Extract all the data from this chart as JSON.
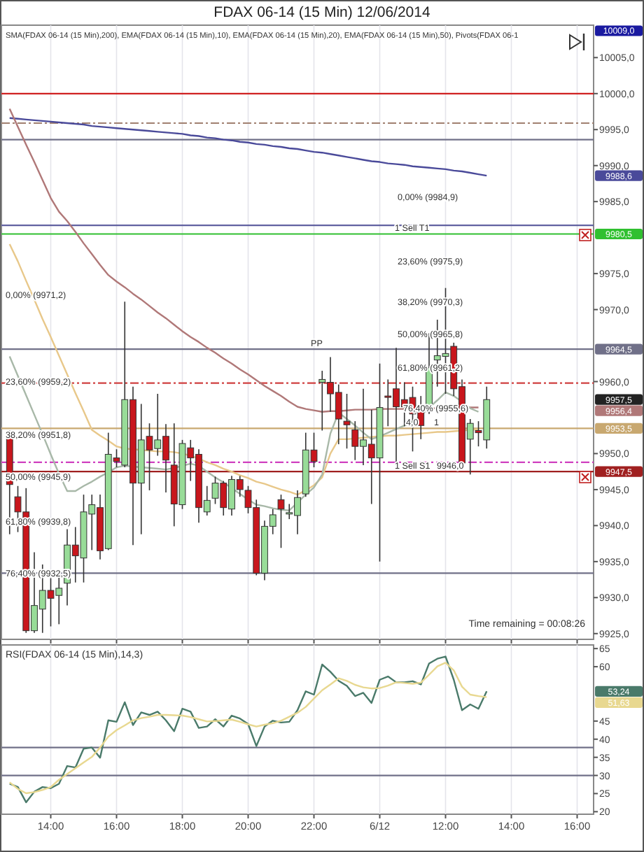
{
  "chart_data": [
    {
      "type": "candlestick",
      "title": "FDAX 06-14 (15 Min)  12/06/2014",
      "categories": [
        null,
        null,
        null,
        null,
        null,
        null,
        null,
        null,
        null,
        null,
        null,
        null,
        null,
        null,
        null,
        null,
        null,
        null,
        null,
        null,
        null,
        null,
        null,
        null,
        null,
        null,
        null,
        null,
        null,
        null,
        null,
        null,
        null,
        null,
        null,
        null,
        null,
        null,
        null,
        null,
        null,
        null,
        null,
        null,
        null,
        null,
        null,
        null,
        null,
        null,
        null,
        null,
        null,
        null,
        null,
        null,
        null,
        null,
        null,
        null,
        null,
        null,
        null,
        null,
        null,
        null,
        null,
        null,
        null,
        null,
        null
      ],
      "ohlc": [
        [
          9952.4,
          9953.2,
          9938.8,
          9945.7
        ],
        [
          9944.0,
          9945.5,
          9939.1,
          9941.9
        ],
        [
          9941.9,
          9945.2,
          9925.1,
          9925.4
        ],
        [
          9925.4,
          9936.3,
          9925.1,
          9928.9
        ],
        [
          9928.4,
          9934.6,
          9925.1,
          9931.0
        ],
        [
          9931.0,
          9932.7,
          9926.0,
          9929.9
        ],
        [
          9930.3,
          9933.4,
          9926.3,
          9931.3
        ],
        [
          9932.0,
          9939.5,
          9928.9,
          9937.3
        ],
        [
          9937.3,
          9939.8,
          9932.1,
          9935.8
        ],
        [
          9935.5,
          9944.3,
          9932.1,
          9941.9
        ],
        [
          9941.6,
          9944.3,
          9936.6,
          9942.9
        ],
        [
          9942.5,
          9944.3,
          9935.3,
          9936.5
        ],
        [
          9936.8,
          9952.9,
          9936.6,
          9949.9
        ],
        [
          9949.4,
          9950.6,
          9948.1,
          9948.9
        ],
        [
          9948.4,
          9971.1,
          9948.1,
          9957.5
        ],
        [
          9957.5,
          9959.3,
          9937.3,
          9945.9
        ],
        [
          9945.9,
          9956.9,
          9938.8,
          9951.9
        ],
        [
          9952.4,
          9954.2,
          9944.9,
          9950.5
        ],
        [
          9950.7,
          9958.3,
          9949.7,
          9951.9
        ],
        [
          9952.4,
          9954.1,
          9944.6,
          9949.1
        ],
        [
          9948.4,
          9954.2,
          9939.9,
          9943.0
        ],
        [
          9942.9,
          9951.9,
          9942.3,
          9951.4
        ],
        [
          9950.8,
          9951.9,
          9946.2,
          9949.4
        ],
        [
          9949.9,
          9950.6,
          9940.4,
          9942.5
        ],
        [
          9941.9,
          9945.5,
          9941.4,
          9943.5
        ],
        [
          9943.8,
          9946.8,
          9943.0,
          9945.9
        ],
        [
          9945.9,
          9946.2,
          9941.4,
          9942.5
        ],
        [
          9942.3,
          9946.9,
          9941.4,
          9946.4
        ],
        [
          9946.4,
          9946.9,
          9944.0,
          9945.0
        ],
        [
          9944.9,
          9945.5,
          9941.7,
          9942.5
        ],
        [
          9942.5,
          9943.6,
          9933.1,
          9933.4
        ],
        [
          9933.4,
          9940.7,
          9932.4,
          9939.9
        ],
        [
          9939.9,
          9942.3,
          9938.8,
          9941.5
        ],
        [
          9943.6,
          9944.3,
          9936.9,
          9942.3
        ],
        [
          9941.7,
          9943.0,
          9940.9,
          9941.8
        ],
        [
          9941.4,
          9944.9,
          9938.8,
          9943.9
        ],
        [
          9944.4,
          9952.9,
          9944.0,
          9950.5
        ],
        [
          9950.5,
          9952.9,
          9948.1,
          9948.9
        ],
        [
          9959.9,
          9961.5,
          9953.2,
          9960.3
        ],
        [
          9959.9,
          9963.4,
          9955.8,
          9958.3
        ],
        [
          9958.5,
          9959.6,
          9951.3,
          9954.8
        ],
        [
          9954.5,
          9958.3,
          9950.7,
          9954.0
        ],
        [
          9953.3,
          9954.5,
          9949.1,
          9951.0
        ],
        [
          9951.0,
          9959.0,
          9948.4,
          9951.9
        ],
        [
          9951.3,
          9956.1,
          9943.0,
          9949.4
        ],
        [
          9949.4,
          9962.5,
          9935.0,
          9956.4
        ],
        [
          9958.0,
          9960.3,
          9953.8,
          9957.9
        ],
        [
          9959.0,
          9964.7,
          9948.4,
          9956.5
        ],
        [
          9957.5,
          9959.9,
          9953.8,
          9956.5
        ],
        [
          9957.8,
          9959.3,
          9950.3,
          9955.5
        ],
        [
          9956.4,
          9958.0,
          9952.0,
          9953.9
        ],
        [
          9955.8,
          9966.7,
          9955.5,
          9961.9
        ],
        [
          9963.0,
          9968.6,
          9959.3,
          9963.6
        ],
        [
          9963.5,
          9973.0,
          9958.3,
          9963.9
        ],
        [
          9964.9,
          9965.4,
          9958.0,
          9959.0
        ],
        [
          9959.3,
          9960.3,
          9948.4,
          9948.7
        ],
        [
          9952.0,
          9954.8,
          9947.1,
          9954.2
        ],
        [
          9953.2,
          9954.5,
          9951.0,
          9952.9
        ],
        [
          9951.9,
          9959.3,
          9950.7,
          9957.5
        ],
        null,
        null,
        null,
        null,
        null,
        null,
        null,
        null,
        null,
        null,
        null,
        null
      ],
      "series": [
        {
          "type": "line",
          "color": "#4a4a9a",
          "values": [
            9996.6,
            9996.5,
            9996.4,
            9996.3,
            9996.2,
            9996.1,
            9996.0,
            9995.9,
            9995.8,
            9995.7,
            9995.5,
            9995.4,
            9995.3,
            9995.2,
            9995.1,
            9995.0,
            9994.9,
            9994.8,
            9994.7,
            9994.6,
            9994.5,
            9994.4,
            9994.2,
            9994.1,
            9993.9,
            9993.8,
            9993.6,
            9993.5,
            9993.3,
            9993.2,
            9993.0,
            9992.9,
            9992.7,
            9992.6,
            9992.4,
            9992.3,
            9992.1,
            9991.9,
            9991.8,
            9991.6,
            9991.4,
            9991.2,
            9991.0,
            9990.8,
            9990.6,
            9990.5,
            9990.3,
            9990.2,
            9990.1,
            9989.9,
            9989.8,
            9989.7,
            9989.6,
            9989.5,
            9989.3,
            9989.2,
            9989.0,
            9988.8,
            9988.6,
            null,
            null,
            null,
            null,
            null,
            null,
            null,
            null,
            null,
            null,
            null,
            null
          ]
        },
        {
          "type": "line",
          "color": "#b07878",
          "values": [
            9997.9,
            9995.4,
            9992.9,
            9990.5,
            9988.0,
            9985.5,
            9983.6,
            9982.3,
            9980.8,
            9979.2,
            9977.7,
            9976.2,
            9974.8,
            9973.9,
            9973.1,
            9972.2,
            9971.4,
            9970.5,
            9969.6,
            9968.8,
            9967.9,
            9967.0,
            9966.2,
            9965.5,
            9964.7,
            9964.0,
            9963.2,
            9962.5,
            9961.7,
            9961.0,
            9960.2,
            9959.4,
            9958.7,
            9958.0,
            9957.2,
            9956.5,
            9956.2,
            9956.0,
            9955.8,
            9955.9,
            9955.9,
            9956.0,
            9956.1,
            9956.1,
            9956.1,
            9956.2,
            9956.2,
            9956.2,
            9956.2,
            9956.2,
            9956.3,
            9956.3,
            9956.3,
            9956.3,
            9956.3,
            9956.4,
            9956.4,
            9956.4,
            null,
            null,
            null,
            null,
            null,
            null,
            null,
            null,
            null,
            null,
            null,
            null,
            null
          ]
        },
        {
          "type": "line",
          "color": "#e8c88a",
          "values": [
            9979.1,
            9976.7,
            9974.0,
            9971.4,
            9968.7,
            9966.2,
            9963.6,
            9961.0,
            9958.4,
            9955.9,
            9953.3,
            9952.5,
            9951.8,
            9951.0,
            9950.7,
            9950.6,
            9950.5,
            9950.4,
            9950.3,
            9950.3,
            9950.2,
            9950.0,
            9949.7,
            9949.3,
            9948.8,
            9948.4,
            9947.9,
            9947.5,
            9947.0,
            9946.6,
            9946.1,
            9945.8,
            9945.4,
            9945.0,
            9944.7,
            9944.3,
            9944.9,
            9945.6,
            9946.7,
            9950.0,
            9952.0,
            9952.0,
            9952.1,
            9952.2,
            9952.3,
            9952.4,
            9952.5,
            9952.5,
            9952.6,
            9952.7,
            9952.8,
            9952.9,
            9953.0,
            9953.0,
            9953.1,
            9953.2,
            9953.3,
            9953.4,
            null,
            null,
            null,
            null,
            null,
            null,
            null,
            null,
            null,
            null,
            null,
            null,
            null
          ]
        },
        {
          "type": "line",
          "color": "#a8b8a8",
          "values": [
            9963.5,
            9960.8,
            9958.1,
            9955.4,
            9952.7,
            9949.9,
            9947.2,
            9944.8,
            9944.8,
            9945.5,
            9946.1,
            9946.8,
            9947.4,
            9948.1,
            9948.3,
            9948.2,
            9948.1,
            9948.0,
            9947.9,
            9947.8,
            9948.0,
            9948.3,
            9948.6,
            9948.3,
            9947.5,
            9946.7,
            9946.0,
            9945.2,
            9944.4,
            9943.6,
            9942.9,
            9942.7,
            9942.4,
            9942.2,
            9942.1,
            9943.2,
            9944.3,
            9945.3,
            9947.1,
            9952.8,
            9955.7,
            9954.8,
            9953.9,
            9952.9,
            9952.0,
            9952.4,
            9952.9,
            9953.4,
            9953.9,
            9954.4,
            9955.3,
            9956.4,
            9957.4,
            9958.5,
            9958.0,
            9957.2,
            9956.3,
            9955.8,
            null,
            null,
            null,
            null,
            null,
            null,
            null,
            null,
            null,
            null,
            null,
            null,
            null
          ]
        }
      ],
      "ylim": [
        9924.2,
        10009.5
      ],
      "yticks": [
        {
          "value": 9925,
          "label": "9925,0"
        },
        {
          "value": 9930,
          "label": "9930,0"
        },
        {
          "value": 9935,
          "label": "9935,0"
        },
        {
          "value": 9940,
          "label": "9940,0"
        },
        {
          "value": 9945,
          "label": "9945,0"
        },
        {
          "value": 9950,
          "label": "9950,0"
        },
        {
          "value": 9960,
          "label": "9960,0"
        },
        {
          "value": 9970,
          "label": "9970,0"
        },
        {
          "value": 9975,
          "label": "9975,0"
        },
        {
          "value": 9985,
          "label": "9985,0"
        },
        {
          "value": 9990,
          "label": "9990,0"
        },
        {
          "value": 9995,
          "label": "9995,0"
        },
        {
          "value": 10000,
          "label": "10000,0"
        },
        {
          "value": 10005,
          "label": "10005,0"
        }
      ],
      "grid": "x",
      "ref_lines": [
        {
          "axis": "y",
          "value": 10000,
          "color": "#d02020",
          "line_style": "solid"
        },
        {
          "axis": "y",
          "value": 9995.9,
          "color": "#a08070",
          "line_style": "dashed"
        },
        {
          "axis": "y",
          "value": 9993.6,
          "color": "#707088",
          "line_style": "solid"
        },
        {
          "axis": "y",
          "value": 9981.7,
          "color": "#6060a0",
          "line_style": "solid"
        },
        {
          "axis": "y",
          "value": 9980.5,
          "color": "#30c030",
          "line_style": "solid",
          "label": "9980,5"
        },
        {
          "axis": "y",
          "value": 9964.5,
          "color": "#707088",
          "line_style": "solid",
          "label": "9964,5"
        },
        {
          "axis": "y",
          "value": 9959.8,
          "color": "#d04040",
          "line_style": "dashed"
        },
        {
          "axis": "y",
          "value": 9953.5,
          "color": "#c8a870",
          "line_style": "solid",
          "label": "9953,5"
        },
        {
          "axis": "y",
          "value": 9948.8,
          "color": "#d040c0",
          "line_style": "dashed"
        },
        {
          "axis": "y",
          "value": 9947.5,
          "color": "#a02020",
          "line_style": "solid",
          "label": "9947,5"
        },
        {
          "axis": "y",
          "value": 9933.4,
          "color": "#707088",
          "line_style": "solid"
        }
      ],
      "annotations": [
        "SMA(FDAX 06-14 (15 Min),200), EMA(FDAX 06-14 (15 Min),10), EMA(FDAX 06-14 (15 Min),20), EMA(FDAX 06-14 (15 Min),50), Pivots(FDAX 06-1",
        "Time remaining = 00:08:26",
        "10009,0",
        "9988,6",
        "9957,5",
        "9956,4",
        "0,00% (9971,2)",
        "23,60% (9959,2)",
        "38,20% (9951,8)",
        "50,00% (9945,9)",
        "61,80% (9939,8)",
        "76,40% (9932,5)",
        "0,00% (9984,9)",
        "23,60% (9975,9)",
        "38,20% (9970,3)",
        "50,00% (9965,8)",
        "61,80% (9961,2)",
        "76,40% (9955,6)",
        {
          "text": "PP",
          "y": 9964.5
        },
        {
          "text": "1 Sell T1",
          "y": 9980.5
        },
        {
          "text": "1 Sell S1",
          "y": 9947.5
        },
        {
          "text": "9946,0",
          "y": 9947.5
        },
        {
          "text": "4,0",
          "y": 9953.5
        },
        {
          "text": "1",
          "y": 9953.5
        }
      ]
    },
    {
      "type": "line",
      "categories": [
        null,
        null,
        null,
        null,
        null,
        "14:00",
        null,
        null,
        null,
        null,
        null,
        null,
        null,
        "16:00",
        null,
        null,
        null,
        null,
        null,
        null,
        null,
        "18:00",
        null,
        null,
        null,
        null,
        null,
        null,
        null,
        "20:00",
        null,
        null,
        null,
        null,
        null,
        null,
        null,
        "22:00",
        null,
        null,
        null,
        null,
        null,
        null,
        null,
        "6/12",
        null,
        null,
        null,
        null,
        null,
        null,
        null,
        "12:00",
        null,
        null,
        null,
        null,
        null,
        null,
        null,
        "14:00",
        null,
        null,
        null,
        null,
        null,
        null,
        null,
        "16:00",
        null
      ],
      "series": [
        {
          "color": "#4a7a6a",
          "values": [
            27.7,
            26.8,
            22.6,
            25.5,
            26.8,
            26.5,
            27.7,
            32.6,
            32.2,
            37.4,
            37.7,
            34.9,
            45.2,
            44.8,
            50.2,
            43.9,
            47.4,
            46.7,
            47.6,
            45.2,
            42.2,
            48.4,
            47.6,
            43.1,
            43.5,
            45.5,
            43.5,
            46.5,
            45.7,
            44.2,
            38.1,
            43.5,
            45.1,
            44.6,
            44.8,
            48.0,
            53.2,
            52.3,
            60.6,
            58.6,
            56.1,
            54.7,
            51.9,
            52.8,
            50.0,
            56.4,
            57.3,
            55.7,
            55.7,
            56.0,
            55.1,
            60.9,
            62.2,
            62.8,
            56.4,
            48.0,
            49.6,
            48.4,
            53.2,
            null,
            null,
            null,
            null,
            null,
            null,
            null,
            null,
            null,
            null,
            null,
            null
          ]
        },
        {
          "color": "#e8d890",
          "values": [
            28.1,
            26.3,
            25.1,
            25.4,
            26.0,
            26.8,
            28.8,
            30.4,
            32.0,
            33.6,
            35.1,
            37.7,
            40.7,
            42.5,
            43.8,
            45.2,
            45.8,
            46.2,
            46.7,
            46.7,
            46.6,
            46.5,
            46.1,
            45.5,
            44.9,
            45.0,
            45.2,
            45.4,
            44.8,
            44.1,
            43.5,
            44.0,
            44.4,
            45.1,
            46.2,
            47.3,
            48.9,
            51.2,
            53.5,
            55.1,
            56.8,
            56.1,
            55.0,
            54.3,
            54.0,
            54.1,
            54.8,
            55.7,
            55.5,
            55.3,
            55.6,
            57.8,
            60.1,
            61.1,
            59.0,
            54.5,
            52.3,
            51.9,
            51.6,
            null,
            null,
            null,
            null,
            null,
            null,
            null,
            null,
            null,
            null,
            null,
            null
          ]
        }
      ],
      "ylim": [
        19.3,
        66
      ],
      "yticks": [
        20,
        25,
        30,
        35,
        40,
        45,
        60,
        65
      ],
      "grid": "x",
      "ref_lines": [
        {
          "axis": "y",
          "value": 37.7,
          "color": "#707088",
          "line_style": "solid"
        },
        {
          "axis": "y",
          "value": 30,
          "color": "#707088",
          "line_style": "solid"
        }
      ],
      "annotations": [
        "RSI(FDAX 06-14 (15 Min),14,3)",
        "53,24",
        "51,63"
      ]
    }
  ]
}
